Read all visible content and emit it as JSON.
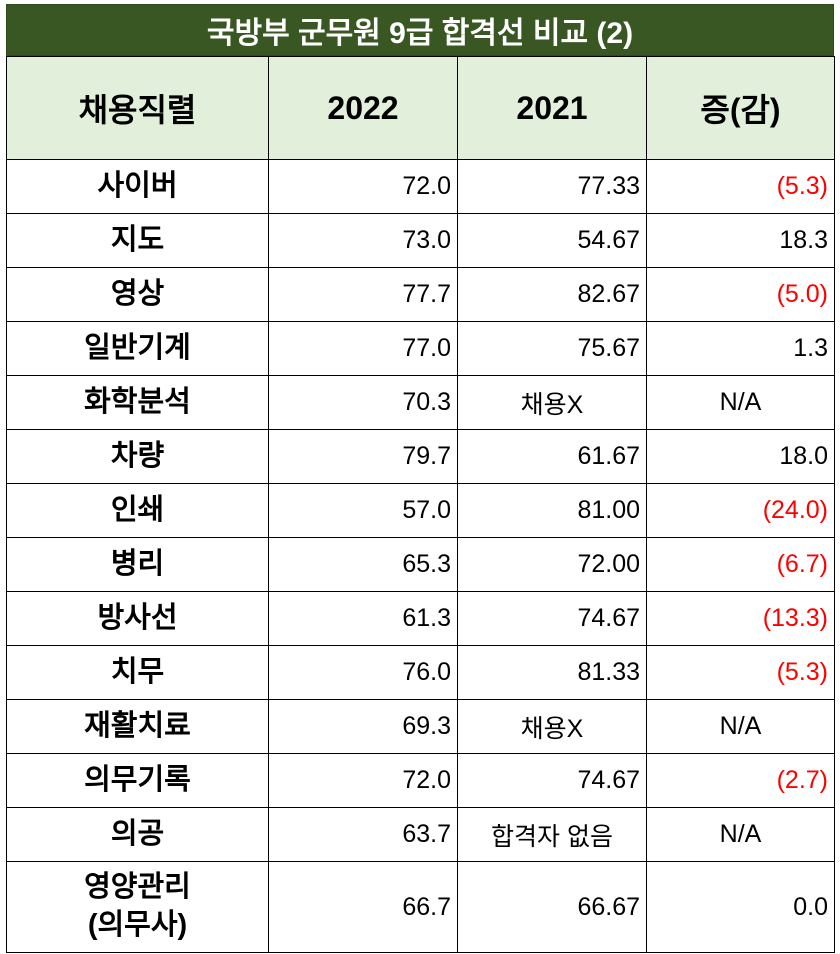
{
  "title": "국방부 군무원  9급 합격선 비교 (2)",
  "headers": [
    "채용직렬",
    "2022",
    "2021",
    "증(감)"
  ],
  "rows": [
    {
      "name": "사이버",
      "y2022": "72.0",
      "y2021": "77.33",
      "diff": "(5.3)"
    },
    {
      "name": "지도",
      "y2022": "73.0",
      "y2021": "54.67",
      "diff": "18.3"
    },
    {
      "name": "영상",
      "y2022": "77.7",
      "y2021": "82.67",
      "diff": "(5.0)"
    },
    {
      "name": "일반기계",
      "y2022": "77.0",
      "y2021": "75.67",
      "diff": "1.3"
    },
    {
      "name": "화학분석",
      "y2022": "70.3",
      "y2021": "채용X",
      "diff": "N/A"
    },
    {
      "name": "차량",
      "y2022": "79.7",
      "y2021": "61.67",
      "diff": "18.0"
    },
    {
      "name": "인쇄",
      "y2022": "57.0",
      "y2021": "81.00",
      "diff": "(24.0)"
    },
    {
      "name": "병리",
      "y2022": "65.3",
      "y2021": "72.00",
      "diff": "(6.7)"
    },
    {
      "name": "방사선",
      "y2022": "61.3",
      "y2021": "74.67",
      "diff": "(13.3)"
    },
    {
      "name": "치무",
      "y2022": "76.0",
      "y2021": "81.33",
      "diff": "(5.3)"
    },
    {
      "name": "재활치료",
      "y2022": "69.3",
      "y2021": "채용X",
      "diff": "N/A"
    },
    {
      "name": "의무기록",
      "y2022": "72.0",
      "y2021": "74.67",
      "diff": "(2.7)"
    },
    {
      "name": "의공",
      "y2022": "63.7",
      "y2021": "합격자 없음",
      "diff": "N/A"
    },
    {
      "name": "영양관리\n(의무사)",
      "y2022": "66.7",
      "y2021": "66.67",
      "diff": "0.0"
    }
  ],
  "colors": {
    "title_bg": "#385723",
    "header_bg": "#e2efda",
    "negative": "#ff0000"
  }
}
